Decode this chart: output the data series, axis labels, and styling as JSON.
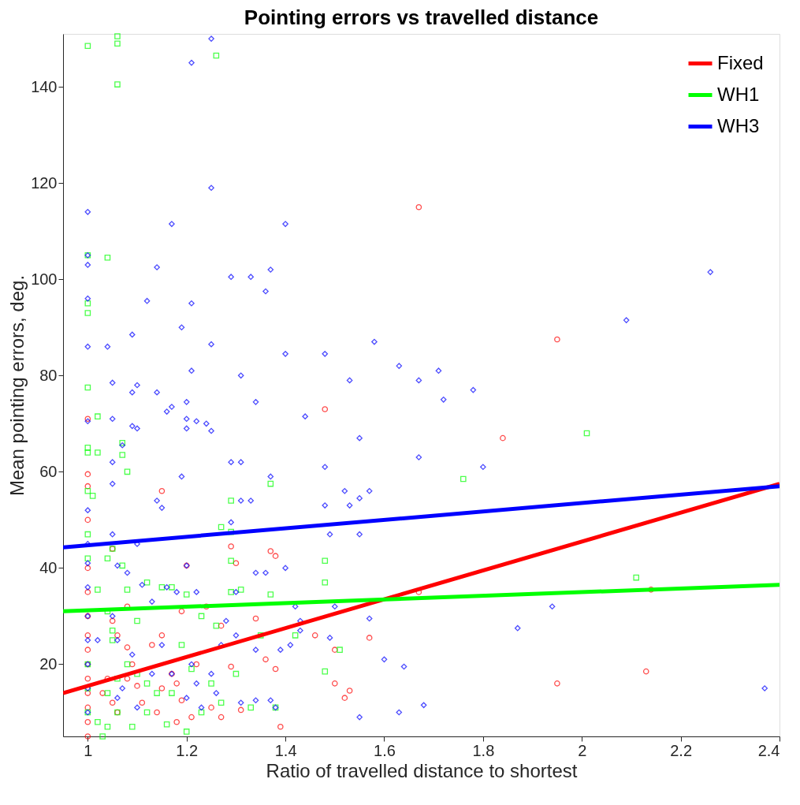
{
  "chart_data": {
    "type": "scatter",
    "title": "Pointing errors vs travelled distance",
    "xlabel": "Ratio of travelled distance to shortest",
    "ylabel": "Mean pointing errors, deg.",
    "xlim": [
      0.95,
      2.4
    ],
    "ylim": [
      5,
      151
    ],
    "xticks": [
      1,
      1.2,
      1.4,
      1.6,
      1.8,
      2,
      2.2,
      2.4
    ],
    "yticks": [
      20,
      40,
      60,
      80,
      100,
      120,
      140
    ],
    "grid": false,
    "legend": "top right",
    "series": [
      {
        "marker": "circle",
        "color": "#ff0000",
        "x": [
          1.67,
          1.95,
          1.84,
          1.48,
          1.15,
          1.0,
          1.0,
          1.0,
          1.0,
          1.05,
          1.29,
          1.3,
          1.37,
          1.38,
          1.2,
          1.19,
          1.24,
          1.27,
          1.34,
          1.36,
          1.38,
          1.29,
          1.22,
          1.17,
          1.15,
          1.18,
          1.19,
          1.21,
          1.25,
          1.27,
          1.31,
          1.39,
          1.46,
          1.5,
          1.5,
          1.52,
          1.53,
          1.57,
          1.67,
          1.95,
          2.13,
          2.14,
          1.08,
          1.05,
          1.06,
          1.08,
          1.09,
          1.08,
          1.1,
          1.11,
          1.05,
          1.03,
          1.04,
          1.0,
          1.0,
          1.0,
          1.0,
          1.0,
          1.0,
          1.0,
          1.0,
          1.0,
          1.0,
          1.0,
          1.13,
          1.15,
          1.18,
          1.14,
          1.06
        ],
        "values": [
          115,
          87.5,
          67,
          73,
          56,
          71,
          59.5,
          57,
          50,
          44,
          44.5,
          41,
          43.5,
          42.5,
          40.5,
          31,
          32,
          28,
          29.5,
          21,
          19,
          19.5,
          20,
          18,
          15,
          16,
          12.5,
          9,
          11,
          9,
          10.5,
          7,
          26,
          23,
          16,
          13,
          14.5,
          25.5,
          35,
          16,
          18.5,
          35.5,
          32,
          29,
          26,
          23.5,
          20,
          17,
          15.5,
          12,
          12,
          14,
          17,
          5,
          8,
          11,
          14,
          17,
          20,
          23,
          26,
          30,
          35,
          40,
          24,
          26,
          8,
          10,
          10
        ]
      },
      {
        "marker": "square",
        "color": "#00ff00",
        "x": [
          1.0,
          1.06,
          1.06,
          1.06,
          1.26,
          1.0,
          1.04,
          1.0,
          1.0,
          1.0,
          1.02,
          1.0,
          1.0,
          1.02,
          1.07,
          1.07,
          1.08,
          1.0,
          1.01,
          1.0,
          1.0,
          1.04,
          1.05,
          1.07,
          1.08,
          1.02,
          1.04,
          1.05,
          1.05,
          1.1,
          1.12,
          1.15,
          1.17,
          1.2,
          1.23,
          1.26,
          1.29,
          1.29,
          1.29,
          1.29,
          1.27,
          1.37,
          1.37,
          1.31,
          1.35,
          1.42,
          1.48,
          1.48,
          1.48,
          1.51,
          1.76,
          2.01,
          2.11,
          1.0,
          1.0,
          1.0,
          1.02,
          1.03,
          1.04,
          1.06,
          1.04,
          1.06,
          1.08,
          1.1,
          1.12,
          1.14,
          1.16,
          1.17,
          1.19,
          1.2,
          1.21,
          1.23,
          1.25,
          1.27,
          1.3,
          1.33,
          1.38,
          1.12,
          1.09
        ],
        "values": [
          148.5,
          150.5,
          149,
          140.5,
          146.5,
          105,
          104.5,
          95,
          93,
          77.5,
          71.5,
          65,
          64,
          64,
          66,
          63.5,
          60,
          56,
          55,
          47,
          42,
          42,
          44,
          40.5,
          35.5,
          35.5,
          31,
          27,
          25,
          29,
          37,
          36,
          36,
          34.5,
          30,
          28,
          35,
          41.5,
          54,
          47.5,
          48.5,
          57.5,
          34.5,
          35.5,
          26,
          26,
          41.5,
          37,
          18.5,
          23,
          58.5,
          68,
          38,
          20,
          15,
          10,
          8,
          5,
          7,
          10,
          14,
          17,
          20,
          18,
          16,
          14,
          7.5,
          14,
          24,
          6,
          19,
          10,
          16,
          12,
          18,
          11,
          11,
          10,
          7
        ]
      },
      {
        "marker": "diamond",
        "color": "#0000ff",
        "x": [
          1.21,
          1.25,
          1.25,
          1.17,
          1.4,
          1.0,
          1.0,
          1.0,
          1.0,
          1.0,
          1.04,
          1.14,
          1.12,
          1.21,
          1.29,
          1.33,
          1.37,
          1.36,
          2.26,
          2.09,
          1.19,
          1.25,
          1.09,
          1.4,
          1.48,
          1.58,
          1.63,
          1.67,
          1.71,
          1.72,
          1.78,
          1.8,
          1.67,
          1.53,
          1.31,
          1.21,
          1.05,
          1.1,
          1.09,
          1.14,
          1.17,
          1.16,
          1.2,
          1.2,
          1.22,
          1.24,
          1.25,
          1.2,
          1.1,
          1.09,
          1.07,
          1.0,
          1.05,
          1.34,
          1.44,
          1.55,
          1.19,
          1.29,
          1.31,
          1.37,
          1.48,
          1.52,
          1.55,
          1.53,
          1.48,
          1.49,
          1.55,
          1.57,
          1.31,
          1.33,
          1.29,
          1.05,
          1.05,
          1.0,
          1.0,
          1.0,
          1.05,
          1.06,
          1.08,
          1.1,
          1.14,
          1.15,
          1.11,
          1.13,
          1.16,
          1.2,
          1.22,
          1.18,
          1.3,
          1.34,
          1.36,
          1.4,
          1.42,
          1.43,
          1.5,
          1.49,
          1.57,
          1.6,
          1.64,
          1.63,
          1.68,
          1.55,
          1.43,
          1.41,
          1.39,
          1.34,
          1.28,
          1.3,
          1.27,
          1.25,
          1.22,
          1.2,
          1.23,
          1.26,
          1.31,
          1.34,
          1.38,
          1.37,
          1.1,
          1.06,
          1.07,
          1.09,
          1.06,
          1.05,
          1.02,
          1.0,
          1.0,
          1.0,
          1.0,
          1.0,
          1.0,
          1.87,
          1.94,
          2.37,
          1.15,
          1.17,
          1.21,
          1.13
        ],
        "values": [
          145,
          150,
          119,
          111.5,
          111.5,
          114,
          105,
          103,
          96,
          86,
          86,
          102.5,
          95.5,
          95,
          100.5,
          100.5,
          102,
          97.5,
          101.5,
          91.5,
          90,
          86.5,
          88.5,
          84.5,
          84.5,
          87,
          82,
          79,
          81,
          75,
          77,
          61,
          63,
          79,
          80,
          81,
          78.5,
          78,
          76.5,
          76.5,
          73.5,
          72.5,
          74.5,
          71,
          70.5,
          70,
          68.5,
          69,
          69,
          69.5,
          65.5,
          70.5,
          71,
          74.5,
          71.5,
          67,
          59,
          62,
          62,
          59,
          61,
          56,
          54.5,
          53,
          53,
          47,
          47,
          56,
          54,
          54,
          49.5,
          57.5,
          62,
          52,
          45,
          41,
          47,
          40.5,
          39,
          45,
          54,
          52.5,
          36.5,
          33,
          36,
          40.5,
          35,
          35,
          35,
          39,
          39,
          40,
          32,
          29,
          32,
          25.5,
          29.5,
          21,
          19.5,
          10,
          11.5,
          9,
          27,
          24,
          23,
          23,
          29,
          26,
          24,
          18,
          16,
          13,
          11,
          14,
          12,
          12.5,
          11,
          12.5,
          11,
          13,
          15,
          22,
          25,
          30,
          25,
          25,
          20,
          15,
          10,
          30,
          36,
          27.5,
          32,
          15,
          24,
          18,
          20,
          18
        ]
      },
      {
        "type": "line",
        "name": "Fixed",
        "color": "#ff0000",
        "x": [
          0.95,
          2.4
        ],
        "values": [
          14,
          57.5
        ]
      },
      {
        "type": "line",
        "name": "WH1",
        "color": "#00ff00",
        "x": [
          0.95,
          2.4
        ],
        "values": [
          31,
          36.5
        ]
      },
      {
        "type": "line",
        "name": "WH3",
        "color": "#0000ff",
        "x": [
          0.95,
          2.4
        ],
        "values": [
          44.3,
          57
        ]
      }
    ]
  }
}
